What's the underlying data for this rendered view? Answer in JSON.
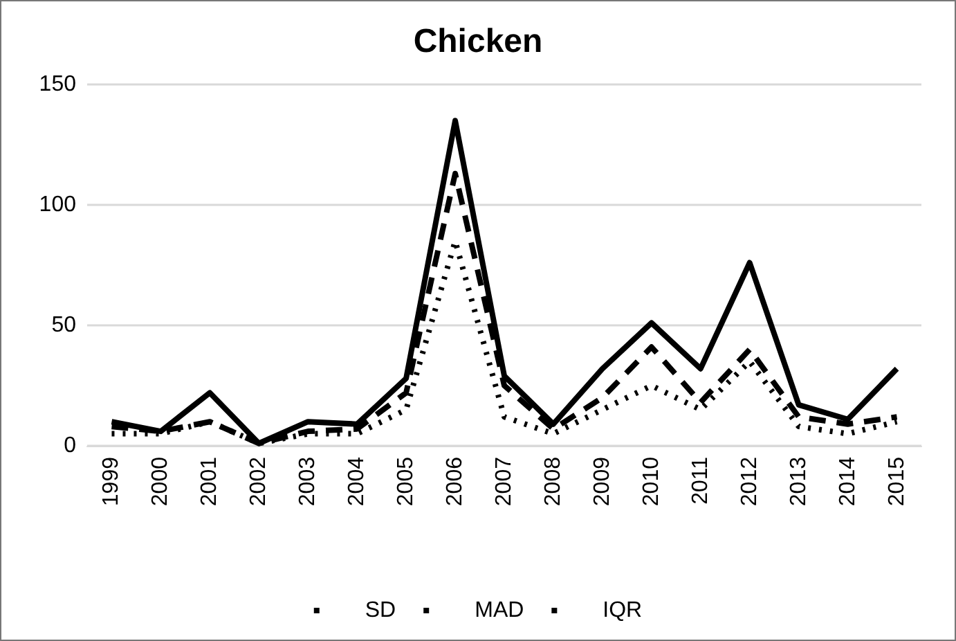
{
  "chart_data": {
    "type": "line",
    "title": "Chicken",
    "categories": [
      "1999",
      "2000",
      "2001",
      "2002",
      "2003",
      "2004",
      "2005",
      "2006",
      "2007",
      "2008",
      "2009",
      "2010",
      "2011",
      "2012",
      "2013",
      "2014",
      "2015"
    ],
    "series": [
      {
        "name": "SD",
        "color": "#000000",
        "line_style": "dashed",
        "values": [
          8,
          6,
          10,
          1,
          6,
          7,
          22,
          113,
          25,
          7,
          20,
          41,
          18,
          40,
          12,
          9,
          12
        ]
      },
      {
        "name": "MAD",
        "color": "#000000",
        "line_style": "dotted",
        "values": [
          5,
          5,
          10,
          1,
          5,
          5,
          15,
          85,
          12,
          5,
          15,
          25,
          15,
          35,
          8,
          5,
          10
        ]
      },
      {
        "name": "IQR",
        "color": "#000000",
        "line_style": "solid",
        "values": [
          10,
          6,
          22,
          1,
          10,
          9,
          28,
          135,
          29,
          9,
          32,
          51,
          32,
          76,
          17,
          11,
          32
        ]
      }
    ],
    "ylim": [
      0,
      150
    ],
    "yticks": [
      0,
      50,
      100,
      150
    ],
    "grid": "y",
    "legend": "bottom",
    "marker": "none"
  }
}
